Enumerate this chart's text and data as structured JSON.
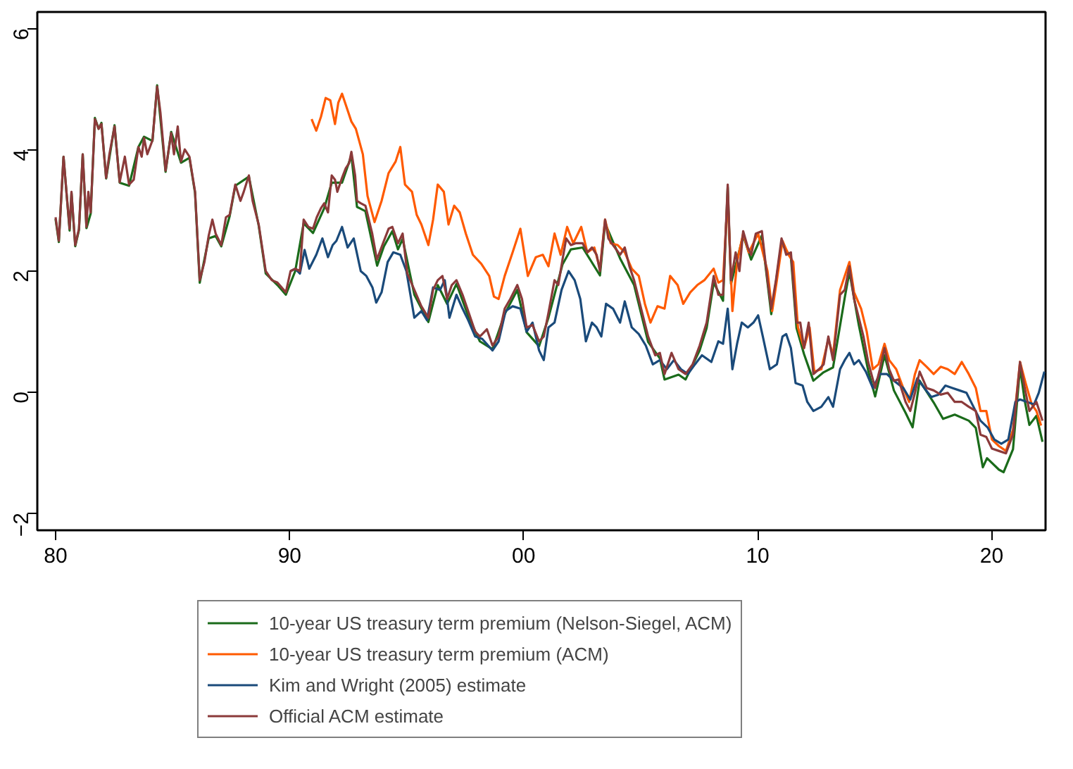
{
  "chart_data": {
    "type": "line",
    "xlim": [
      1979.22,
      2022.3
    ],
    "ylim": [
      -2.29,
      6.27
    ],
    "xticks": [
      {
        "value": 1980,
        "label": "80"
      },
      {
        "value": 1990,
        "label": "90"
      },
      {
        "value": 2000,
        "label": "00"
      },
      {
        "value": 2010,
        "label": "10"
      },
      {
        "value": 2020,
        "label": "20"
      }
    ],
    "yticks": [
      -2,
      0,
      2,
      4,
      6
    ],
    "grid": false,
    "legend": "bottom",
    "line_style": "solid",
    "marker": "none",
    "series": [
      {
        "name": "10-year US treasury term premium (Nelson-Siegel, ACM)",
        "color": "#1a6b1a",
        "x": [
          1980.0,
          1980.14,
          1980.34,
          1980.48,
          1980.6,
          1980.68,
          1980.84,
          1981.0,
          1981.16,
          1981.32,
          1981.5,
          1981.68,
          1981.84,
          1981.96,
          1982.16,
          1982.52,
          1982.74,
          1983.14,
          1983.54,
          1983.78,
          1984.14,
          1984.34,
          1984.7,
          1984.94,
          1985.36,
          1985.72,
          1985.96,
          1986.16,
          1986.54,
          1986.84,
          1987.08,
          1987.44,
          1987.68,
          1988.26,
          1988.68,
          1988.98,
          1989.48,
          1989.84,
          1990.24,
          1990.6,
          1991.0,
          1991.48,
          1991.8,
          1992.24,
          1992.64,
          1992.88,
          1993.24,
          1993.74,
          1994.03,
          1994.39,
          1994.63,
          1994.83,
          1995.33,
          1995.93,
          1996.33,
          1996.73,
          1997.13,
          1997.63,
          1998.13,
          1998.67,
          1999.19,
          1999.73,
          2000.13,
          2000.66,
          2001.06,
          2001.66,
          2002.02,
          2002.52,
          2003.26,
          2003.48,
          2004.12,
          2004.72,
          2005.32,
          2005.82,
          2006.02,
          2006.62,
          2006.92,
          2007.52,
          2007.82,
          2008.12,
          2008.52,
          2008.72,
          2008.86,
          2009.38,
          2009.72,
          2010.18,
          2010.58,
          2011.02,
          2011.42,
          2011.66,
          2011.98,
          2012.38,
          2012.82,
          2013.22,
          2013.72,
          2013.92,
          2014.32,
          2014.72,
          2015.02,
          2015.42,
          2015.82,
          2016.32,
          2016.62,
          2016.92,
          2017.52,
          2017.92,
          2018.42,
          2019.02,
          2019.32,
          2019.62,
          2019.8,
          2020.31,
          2020.51,
          2020.91,
          2021.21,
          2021.41,
          2021.61,
          2021.91,
          2022.17
        ],
        "values": [
          2.85,
          2.47,
          3.88,
          3.22,
          2.66,
          3.28,
          2.4,
          2.67,
          3.92,
          2.7,
          2.94,
          4.52,
          4.34,
          4.44,
          3.52,
          4.4,
          3.45,
          3.4,
          4.04,
          4.21,
          4.14,
          5.06,
          3.63,
          4.29,
          3.78,
          3.86,
          3.28,
          1.8,
          2.53,
          2.57,
          2.4,
          2.9,
          3.4,
          3.55,
          2.74,
          1.95,
          1.76,
          1.6,
          1.99,
          2.78,
          2.62,
          3.03,
          3.45,
          3.45,
          3.9,
          3.05,
          2.98,
          2.08,
          2.4,
          2.65,
          2.35,
          2.52,
          1.6,
          1.15,
          1.76,
          1.45,
          1.78,
          1.25,
          0.83,
          0.7,
          1.28,
          1.68,
          0.98,
          0.75,
          1.22,
          2.1,
          2.35,
          2.38,
          1.92,
          2.78,
          2.2,
          1.76,
          0.82,
          0.55,
          0.2,
          0.28,
          0.2,
          0.68,
          1.05,
          1.8,
          1.5,
          3.38,
          1.78,
          2.58,
          2.18,
          2.58,
          1.28,
          2.45,
          2.22,
          1.05,
          0.62,
          0.18,
          0.32,
          0.4,
          1.55,
          1.98,
          1.1,
          0.35,
          -0.08,
          0.6,
          0.02,
          -0.35,
          -0.59,
          0.18,
          -0.18,
          -0.45,
          -0.38,
          -0.48,
          -0.6,
          -1.25,
          -1.1,
          -1.29,
          -1.33,
          -0.95,
          0.4,
          -0.15,
          -0.55,
          -0.4,
          -0.83
        ]
      },
      {
        "name": "10-year US treasury term premium (ACM)",
        "color": "#ff5a00",
        "x": [
          1990.94,
          1991.14,
          1991.34,
          1991.54,
          1991.74,
          1991.94,
          1992.08,
          1992.24,
          1992.44,
          1992.64,
          1992.83,
          1993.13,
          1993.33,
          1993.63,
          1993.93,
          1994.23,
          1994.53,
          1994.73,
          1994.93,
          1995.23,
          1995.43,
          1995.63,
          1995.93,
          1996.13,
          1996.33,
          1996.59,
          1996.79,
          1997.03,
          1997.27,
          1997.53,
          1997.83,
          1998.19,
          1998.53,
          1998.73,
          1998.93,
          1999.19,
          1999.53,
          1999.86,
          2000.18,
          2000.52,
          2000.82,
          2001.06,
          2001.32,
          2001.58,
          2001.86,
          2002.12,
          2002.46,
          2002.72,
          2003.02,
          2003.26,
          2003.48,
          2003.72,
          2004.02,
          2004.32,
          2004.62,
          2004.92,
          2005.18,
          2005.42,
          2005.72,
          2006.02,
          2006.26,
          2006.58,
          2006.82,
          2007.12,
          2007.42,
          2007.72,
          2008.12,
          2008.32,
          2008.52,
          2008.72,
          2008.92,
          2009.12,
          2009.38,
          2009.62,
          2010.02,
          2010.42,
          2010.62,
          2010.82,
          2011.06,
          2011.32,
          2011.52,
          2011.72,
          2011.98,
          2012.22,
          2012.42,
          2012.72,
          2013.02,
          2013.22,
          2013.52,
          2013.92,
          2014.12,
          2014.42,
          2014.66,
          2014.92,
          2015.16,
          2015.42,
          2015.62,
          2015.92,
          2016.22,
          2016.47,
          2016.72,
          2016.92,
          2017.22,
          2017.52,
          2017.82,
          2018.12,
          2018.42,
          2018.72,
          2019.02,
          2019.32,
          2019.52,
          2019.77,
          2020.01,
          2020.31,
          2020.61,
          2020.91,
          2021.21,
          2021.45,
          2021.71,
          2021.91,
          2022.11
        ],
        "values": [
          4.5,
          4.31,
          4.54,
          4.85,
          4.81,
          4.42,
          4.77,
          4.92,
          4.69,
          4.46,
          4.34,
          3.92,
          3.23,
          2.8,
          3.15,
          3.61,
          3.8,
          4.04,
          3.42,
          3.3,
          2.92,
          2.76,
          2.42,
          2.84,
          3.42,
          3.3,
          2.76,
          3.07,
          2.96,
          2.61,
          2.26,
          2.11,
          1.91,
          1.57,
          1.53,
          1.91,
          2.3,
          2.69,
          1.91,
          2.22,
          2.26,
          2.07,
          2.61,
          2.26,
          2.72,
          2.45,
          2.72,
          2.3,
          2.38,
          2.03,
          2.84,
          2.45,
          2.42,
          2.3,
          2.03,
          1.91,
          1.45,
          1.14,
          1.41,
          1.37,
          1.91,
          1.76,
          1.45,
          1.64,
          1.76,
          1.84,
          2.03,
          1.8,
          1.84,
          3.23,
          1.33,
          2.14,
          2.61,
          2.3,
          2.61,
          1.99,
          1.33,
          1.84,
          2.49,
          2.26,
          2.14,
          1.06,
          0.72,
          1.06,
          0.33,
          0.37,
          0.87,
          0.6,
          1.68,
          2.14,
          1.64,
          1.37,
          0.99,
          0.37,
          0.45,
          0.79,
          0.52,
          0.37,
          0.06,
          -0.17,
          0.29,
          0.52,
          0.41,
          0.29,
          0.41,
          0.37,
          0.29,
          0.49,
          0.29,
          0.06,
          -0.32,
          -0.32,
          -0.79,
          -0.9,
          -0.98,
          -0.63,
          0.49,
          0.14,
          -0.21,
          -0.32,
          -0.56
        ]
      },
      {
        "name": "Kim and Wright (2005) estimate",
        "color": "#1a4a7a",
        "x": [
          1990.04,
          1990.24,
          1990.44,
          1990.64,
          1990.84,
          1991.14,
          1991.4,
          1991.64,
          1991.84,
          1992.0,
          1992.24,
          1992.48,
          1992.74,
          1993.04,
          1993.28,
          1993.54,
          1993.7,
          1993.93,
          1994.19,
          1994.43,
          1994.73,
          1994.99,
          1995.33,
          1995.63,
          1995.87,
          1996.13,
          1996.43,
          1996.63,
          1996.83,
          1997.13,
          1997.39,
          1997.63,
          1997.93,
          1998.23,
          1998.67,
          1998.93,
          1999.23,
          1999.53,
          1999.86,
          2000.13,
          2000.38,
          2000.66,
          2000.86,
          2001.06,
          2001.32,
          2001.62,
          2001.92,
          2002.18,
          2002.42,
          2002.66,
          2002.92,
          2003.12,
          2003.32,
          2003.52,
          2003.82,
          2004.12,
          2004.32,
          2004.62,
          2004.92,
          2005.22,
          2005.52,
          2005.82,
          2006.12,
          2006.42,
          2006.72,
          2007.02,
          2007.32,
          2007.62,
          2008.02,
          2008.32,
          2008.52,
          2008.72,
          2008.92,
          2009.12,
          2009.32,
          2009.58,
          2009.82,
          2010.02,
          2010.22,
          2010.52,
          2010.82,
          2011.06,
          2011.22,
          2011.42,
          2011.62,
          2011.92,
          2012.12,
          2012.38,
          2012.72,
          2013.02,
          2013.22,
          2013.52,
          2013.72,
          2013.92,
          2014.12,
          2014.32,
          2014.62,
          2014.92,
          2015.22,
          2015.52,
          2015.82,
          2016.22,
          2016.52,
          2016.82,
          2017.12,
          2017.42,
          2017.72,
          2018.02,
          2018.32,
          2018.62,
          2018.92,
          2019.22,
          2019.52,
          2019.82,
          2020.11,
          2020.41,
          2020.71,
          2021.01,
          2021.21,
          2021.51,
          2021.81,
          2022.01,
          2022.25
        ],
        "values": [
          1.99,
          2.03,
          1.95,
          2.34,
          2.03,
          2.26,
          2.53,
          2.22,
          2.42,
          2.49,
          2.72,
          2.38,
          2.53,
          1.99,
          1.91,
          1.72,
          1.47,
          1.64,
          2.14,
          2.3,
          2.26,
          1.99,
          1.22,
          1.33,
          1.18,
          1.72,
          1.68,
          1.84,
          1.22,
          1.6,
          1.37,
          1.18,
          0.91,
          0.87,
          0.68,
          0.83,
          1.33,
          1.41,
          1.37,
          0.99,
          1.14,
          0.68,
          0.52,
          1.06,
          1.14,
          1.68,
          1.99,
          1.84,
          1.53,
          0.83,
          1.14,
          1.06,
          0.91,
          1.45,
          1.37,
          1.14,
          1.49,
          1.06,
          0.95,
          0.76,
          0.45,
          0.52,
          0.37,
          0.52,
          0.37,
          0.29,
          0.45,
          0.6,
          0.49,
          0.83,
          0.79,
          1.37,
          0.37,
          0.79,
          1.14,
          1.06,
          1.14,
          1.26,
          0.91,
          0.37,
          0.45,
          0.91,
          0.95,
          0.72,
          0.14,
          0.1,
          -0.17,
          -0.32,
          -0.25,
          -0.09,
          -0.25,
          0.37,
          0.52,
          0.64,
          0.45,
          0.52,
          0.33,
          0.06,
          0.29,
          0.29,
          0.18,
          0.06,
          -0.13,
          0.22,
          0.06,
          -0.09,
          -0.05,
          0.1,
          0.06,
          0.02,
          -0.02,
          -0.25,
          -0.48,
          -0.59,
          -0.79,
          -0.86,
          -0.79,
          -0.17,
          -0.13,
          -0.17,
          -0.21,
          -0.02,
          0.33
        ]
      },
      {
        "name": "Official ACM estimate",
        "color": "#8b3a3a",
        "x": [
          1980.0,
          1980.14,
          1980.34,
          1980.48,
          1980.6,
          1980.68,
          1980.84,
          1981.0,
          1981.16,
          1981.32,
          1981.4,
          1981.5,
          1981.68,
          1981.84,
          1981.96,
          1982.16,
          1982.3,
          1982.52,
          1982.74,
          1982.96,
          1983.14,
          1983.34,
          1983.54,
          1983.68,
          1983.78,
          1983.92,
          1984.14,
          1984.34,
          1984.48,
          1984.7,
          1984.94,
          1985.06,
          1985.22,
          1985.36,
          1985.52,
          1985.72,
          1985.96,
          1986.16,
          1986.36,
          1986.54,
          1986.7,
          1986.84,
          1987.08,
          1987.28,
          1987.44,
          1987.68,
          1987.9,
          1988.04,
          1988.26,
          1988.42,
          1988.68,
          1988.98,
          1989.24,
          1989.48,
          1989.84,
          1990.04,
          1990.24,
          1990.44,
          1990.6,
          1990.8,
          1991.0,
          1991.16,
          1991.34,
          1991.48,
          1991.64,
          1991.8,
          1991.94,
          1992.04,
          1992.24,
          1992.4,
          1992.54,
          1992.64,
          1992.8,
          1992.88,
          1993.04,
          1993.24,
          1993.53,
          1993.73,
          1994.03,
          1994.23,
          1994.39,
          1994.63,
          1994.83,
          1995.03,
          1995.33,
          1995.63,
          1995.93,
          1996.13,
          1996.33,
          1996.53,
          1996.73,
          1996.93,
          1997.13,
          1997.39,
          1997.63,
          1997.93,
          1998.13,
          1998.43,
          1998.67,
          1998.93,
          1999.19,
          1999.43,
          1999.73,
          1999.93,
          2000.13,
          2000.38,
          2000.66,
          2000.86,
          2001.06,
          2001.32,
          2001.48,
          2001.66,
          2001.82,
          2002.02,
          2002.22,
          2002.52,
          2002.72,
          2002.92,
          2003.12,
          2003.26,
          2003.48,
          2003.62,
          2003.82,
          2004.12,
          2004.32,
          2004.52,
          2004.72,
          2005.02,
          2005.32,
          2005.62,
          2005.82,
          2006.02,
          2006.32,
          2006.62,
          2006.92,
          2007.22,
          2007.52,
          2007.82,
          2008.12,
          2008.32,
          2008.52,
          2008.72,
          2008.86,
          2009.06,
          2009.22,
          2009.38,
          2009.58,
          2009.72,
          2009.92,
          2010.18,
          2010.42,
          2010.58,
          2010.78,
          2011.02,
          2011.22,
          2011.42,
          2011.66,
          2011.82,
          2011.98,
          2012.18,
          2012.38,
          2012.62,
          2012.82,
          2013.02,
          2013.22,
          2013.52,
          2013.72,
          2013.92,
          2014.12,
          2014.32,
          2014.52,
          2014.72,
          2015.02,
          2015.22,
          2015.42,
          2015.62,
          2015.82,
          2016.02,
          2016.32,
          2016.52,
          2016.72,
          2016.92,
          2017.22,
          2017.52,
          2017.82,
          2018.12,
          2018.42,
          2018.72,
          2019.02,
          2019.32,
          2019.52,
          2019.77,
          2020.01,
          2020.31,
          2020.61,
          2020.91,
          2021.21,
          2021.41,
          2021.61,
          2021.91,
          2022.17
        ],
        "values": [
          2.88,
          2.49,
          3.88,
          3.23,
          2.69,
          3.3,
          2.42,
          2.69,
          3.92,
          2.72,
          3.3,
          2.96,
          4.5,
          4.34,
          4.42,
          3.53,
          3.92,
          4.38,
          3.46,
          3.88,
          3.42,
          3.5,
          4.04,
          3.88,
          4.19,
          3.92,
          4.15,
          5.04,
          4.61,
          3.65,
          4.27,
          3.92,
          4.38,
          3.8,
          4.0,
          3.88,
          3.3,
          1.84,
          2.14,
          2.57,
          2.84,
          2.61,
          2.42,
          2.88,
          2.92,
          3.42,
          3.15,
          3.3,
          3.57,
          3.15,
          2.76,
          1.99,
          1.84,
          1.8,
          1.64,
          1.99,
          2.03,
          1.99,
          2.84,
          2.72,
          2.69,
          2.88,
          3.03,
          3.11,
          2.96,
          3.57,
          3.5,
          3.3,
          3.53,
          3.69,
          3.77,
          3.96,
          3.57,
          3.15,
          3.11,
          3.07,
          2.61,
          2.18,
          2.49,
          2.69,
          2.72,
          2.45,
          2.61,
          1.95,
          1.68,
          1.41,
          1.22,
          1.68,
          1.84,
          1.91,
          1.53,
          1.76,
          1.84,
          1.6,
          1.33,
          0.99,
          0.91,
          1.03,
          0.76,
          0.91,
          1.37,
          1.53,
          1.76,
          1.53,
          1.06,
          1.1,
          0.83,
          0.91,
          1.3,
          1.84,
          1.76,
          2.18,
          2.53,
          2.42,
          2.45,
          2.45,
          2.3,
          2.38,
          2.26,
          1.99,
          2.84,
          2.53,
          2.42,
          2.26,
          2.38,
          2.07,
          1.84,
          1.37,
          0.91,
          0.6,
          0.64,
          0.29,
          0.64,
          0.37,
          0.29,
          0.45,
          0.76,
          1.14,
          1.91,
          1.6,
          1.6,
          3.42,
          1.84,
          2.3,
          1.99,
          2.65,
          2.38,
          2.26,
          2.61,
          2.65,
          1.84,
          1.37,
          1.84,
          2.53,
          2.26,
          2.3,
          1.14,
          1.14,
          0.72,
          1.14,
          0.29,
          0.37,
          0.45,
          0.91,
          0.52,
          1.6,
          1.68,
          2.07,
          1.53,
          1.22,
          0.91,
          0.49,
          0.06,
          0.37,
          0.72,
          0.37,
          0.18,
          0.2,
          -0.17,
          -0.32,
          -0.02,
          0.33,
          0.06,
          0.02,
          -0.05,
          -0.02,
          -0.17,
          -0.17,
          -0.25,
          -0.32,
          -0.71,
          -0.75,
          -0.94,
          -0.98,
          -1.02,
          -0.71,
          0.49,
          0.06,
          -0.32,
          -0.17,
          -0.48
        ]
      }
    ]
  }
}
